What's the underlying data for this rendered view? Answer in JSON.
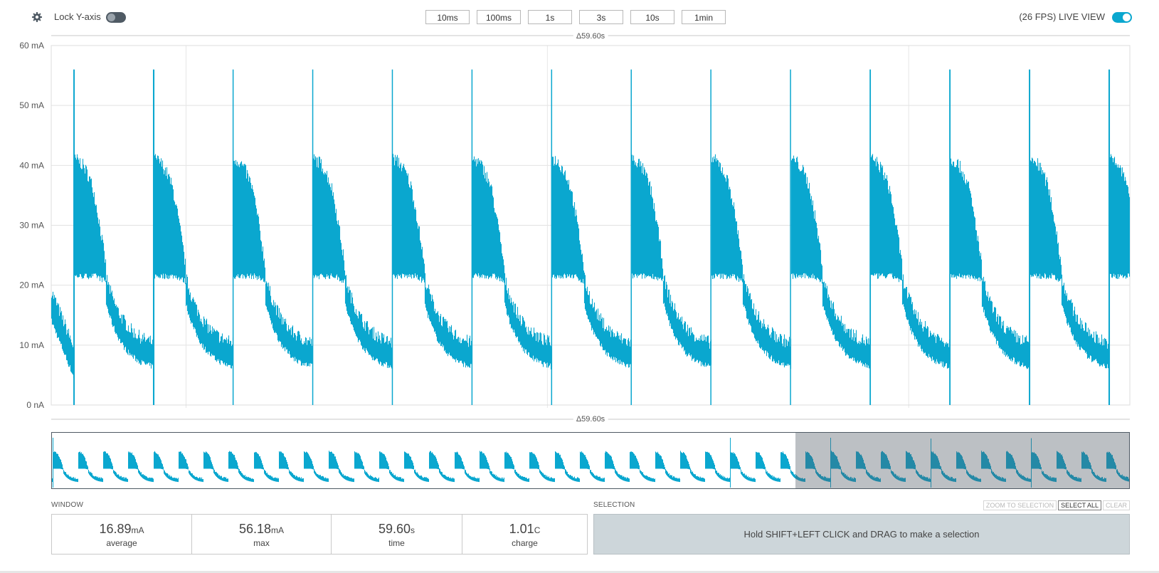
{
  "toolbar": {
    "lock_label": "Lock Y-axis",
    "lock_enabled": false,
    "time_windows": [
      "10ms",
      "100ms",
      "1s",
      "3s",
      "10s",
      "1min"
    ],
    "fps_label": "(26 FPS) LIVE VIEW",
    "live_view_enabled": true
  },
  "delta_top": "Δ59.60s",
  "delta_bottom": "Δ59.60s",
  "colors": {
    "trace": "#0aa7cf",
    "accent": "#0aa7cf",
    "selection_bg": "#cdd6da"
  },
  "chart_data": {
    "type": "line",
    "ylabel_ticks": [
      "0 nA",
      "10 mA",
      "20 mA",
      "30 mA",
      "40 mA",
      "50 mA",
      "60 mA"
    ],
    "ylim": [
      0,
      60
    ],
    "y_unit": "mA",
    "xlim": [
      0,
      59.6
    ],
    "grid": true,
    "series": [
      {
        "period_s": 4.4,
        "spike_peak": 56,
        "plateau_high": 41,
        "plateau_low": 21.5,
        "trough_high": 9.5,
        "trough_low": 5,
        "start_value": 19
      }
    ]
  },
  "window": {
    "section_label": "WINDOW",
    "stats": [
      {
        "value": "16.89",
        "unit": "mA",
        "label": "average"
      },
      {
        "value": "56.18",
        "unit": "mA",
        "label": "max"
      },
      {
        "value": "59.60",
        "unit": "s",
        "label": "time"
      },
      {
        "value": "1.01",
        "unit": "C",
        "label": "charge"
      }
    ]
  },
  "selection": {
    "section_label": "SELECTION",
    "zoom_btn": "ZOOM TO SELECTION",
    "select_all_btn": "SELECT ALL",
    "clear_btn": "CLEAR",
    "hint": "Hold SHIFT+LEFT CLICK and DRAG to make a selection"
  },
  "minimap": {
    "visible_fraction_start": 0.69,
    "visible_fraction_end": 1.0
  }
}
